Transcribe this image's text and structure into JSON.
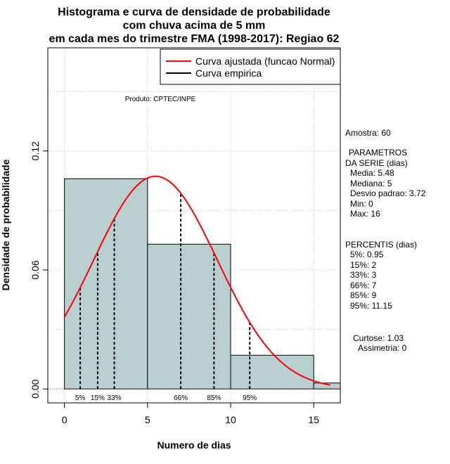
{
  "chart_data": {
    "type": "histogram",
    "title_lines": [
      "Histograma e curva de densidade de probabilidade",
      "com chuva acima de 5 mm",
      "em cada mes do trimestre FMA (1998-2017): Regiao 62"
    ],
    "xlabel": "Numero de dias",
    "ylabel": "Densidade de probabilidade",
    "xlim": [
      -1,
      16.6
    ],
    "ylim": [
      -0.007,
      0.172
    ],
    "x_ticks": [
      0,
      5,
      10,
      15
    ],
    "y_ticks": [
      0.0,
      0.06,
      0.12
    ],
    "y_tick_labels": [
      "0.00",
      "0.06",
      "0.12"
    ],
    "grid": true,
    "bins": [
      {
        "from": 0,
        "to": 5,
        "density": 0.106
      },
      {
        "from": 5,
        "to": 10,
        "density": 0.073
      },
      {
        "from": 10,
        "to": 15,
        "density": 0.017
      },
      {
        "from": 15,
        "to": 20,
        "density": 0.003
      }
    ],
    "normal_fit": {
      "name": "Curva ajustada (funcao Normal)",
      "mean": 5.48,
      "sd": 3.72,
      "x_range": [
        0,
        16
      ],
      "color": "#ff0000"
    },
    "empirical_curve": {
      "name": "Curva empirica",
      "color": "#000000"
    },
    "legend_position": "top-right",
    "percentiles": [
      {
        "label": "5%",
        "x": 0.95
      },
      {
        "label": "15%",
        "x": 2
      },
      {
        "label": "33%",
        "x": 3
      },
      {
        "label": "66%",
        "x": 7
      },
      {
        "label": "85%",
        "x": 9
      },
      {
        "label": "95%",
        "x": 11.15
      }
    ],
    "credit": "Produto: CPTEC/INPE",
    "bar_color": "#b9cfcf"
  },
  "stats_panel": {
    "amostra": "Amostra: 60",
    "parametros_title_1": "PARAMETROS",
    "parametros_title_2": "DA SERIE (dias)",
    "media": "Media: 5.48",
    "mediana": "Mediana: 5",
    "desvio": "Desvio padrao: 3.72",
    "min": "Min: 0",
    "max": "Max: 16",
    "percentis_title": "PERCENTIS (dias)",
    "p5": "5%: 0.95",
    "p15": "15%: 2",
    "p33": "33%: 3",
    "p66": "66%: 7",
    "p85": "85%: 9",
    "p95": "95%: 11.15",
    "curtose": "Curtose: 1.03",
    "assimetria": "Assimetria: 0"
  }
}
